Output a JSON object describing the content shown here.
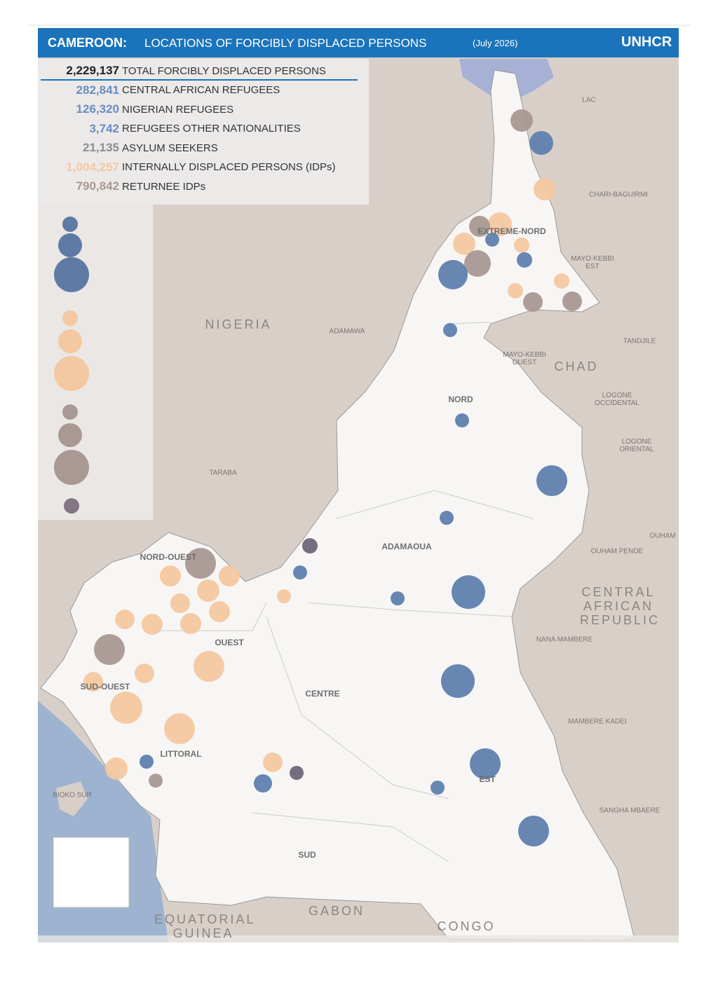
{
  "header": {
    "title_bold": "CAMEROON:",
    "title": "LOCATIONS OF FORCIBLY DISPLACED PERSONS",
    "date": "(July 2026)",
    "logo": "UNHCR"
  },
  "summary": [
    {
      "value": "2,229,137",
      "label": "TOTAL FORCIBLY DISPLACED PERSONS"
    },
    {
      "value": "282,841",
      "label": "CENTRAL AFRICAN REFUGEES"
    },
    {
      "value": "126,320",
      "label": "NIGERIAN REFUGEES"
    },
    {
      "value": "3,742",
      "label": "REFUGEES OTHER NATIONALITIES"
    },
    {
      "value": "21,135",
      "label": "ASYLUM SEEKERS"
    },
    {
      "value": "1,004,257",
      "label": "INTERNALLY DISPLACED PERSONS (IDPs)"
    },
    {
      "value": "790,842",
      "label": "RETURNEE IDPs"
    }
  ],
  "countries": [
    "NIGERIA",
    "CHAD",
    "CENTRAL AFRICAN REPUBLIC",
    "EQUATORIAL GUINEA",
    "GABON",
    "CONGO"
  ],
  "regions": [
    "EXTREME-NORD",
    "NORD",
    "ADAMAOUA",
    "NORD-OUEST",
    "OUEST",
    "SUD-OUEST",
    "LITTORAL",
    "CENTRE",
    "EST",
    "SUD"
  ],
  "neighbor_regions": [
    "LAC",
    "CHARI-BAGUIRMI",
    "MAYO-KEBBI EST",
    "MAYO-KEBBI OUEST",
    "TANDJILE",
    "LOGONE OCCIDENTAL",
    "LOGONE ORIENTAL",
    "OUHAM",
    "OUHAM PENDE",
    "NANA MAMBERE",
    "MAMBERE KADEI",
    "SANGHA MBAERE",
    "ADAMAWA",
    "TARABA",
    "BIOKO SUR"
  ]
}
